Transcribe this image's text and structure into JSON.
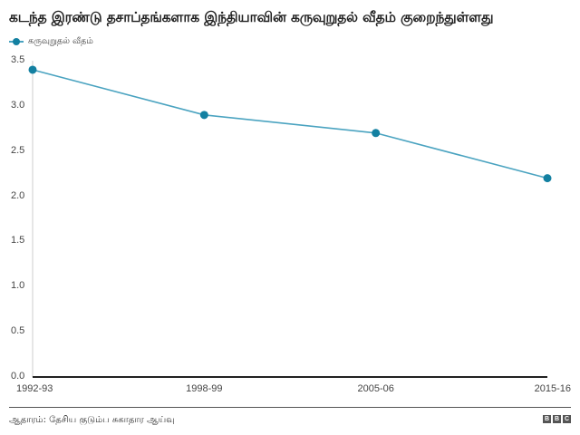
{
  "header": {
    "title": "கடந்த இரண்டு தசாப்தங்களாக இந்தியாவின் கருவுறுதல் வீதம் குறைந்துள்ளது"
  },
  "legend": {
    "items": [
      {
        "label": "கருவுறுதல் வீதம்",
        "color": "#1380A1"
      }
    ]
  },
  "footer": {
    "source": "ஆதாரம்: தேசிய குடும்ப சுகாதார ஆய்வு",
    "logo": [
      "B",
      "B",
      "C"
    ]
  },
  "colors": {
    "series": "#1380A1",
    "line": "#4aa3c0",
    "baseline": "#222222",
    "axis": "#cccccc"
  },
  "chart_data": {
    "type": "line",
    "title": "கடந்த இரண்டு தசாப்தங்களாக இந்தியாவின் கருவுறுதல் வீதம் குறைந்துள்ளது",
    "categories": [
      "1992-93",
      "1998-99",
      "2005-06",
      "2015-16"
    ],
    "series": [
      {
        "name": "கருவுறுதல் வீதம்",
        "values": [
          3.4,
          2.9,
          2.7,
          2.2
        ]
      }
    ],
    "xlabel": "",
    "ylabel": "",
    "ylim": [
      0,
      3.5
    ],
    "yticks": [
      "0.0",
      "0.5",
      "1.0",
      "1.5",
      "2.0",
      "2.5",
      "3.0",
      "3.5"
    ],
    "grid": false,
    "legend_position": "top-left",
    "source": "ஆதாரம்: தேசிய குடும்ப சுகாதார ஆய்வு"
  }
}
